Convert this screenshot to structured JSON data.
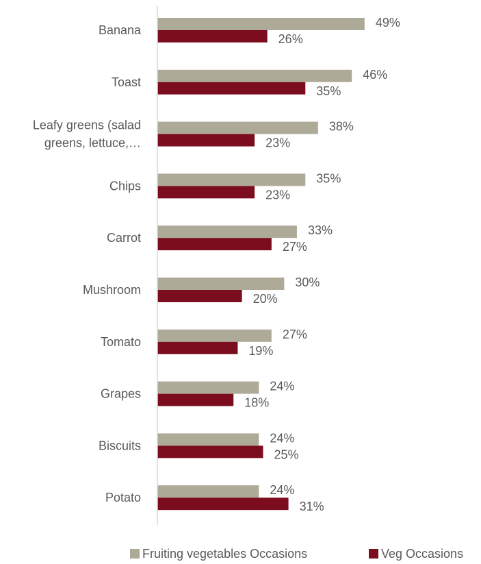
{
  "chart_data": {
    "type": "bar",
    "orientation": "horizontal",
    "categories": [
      "Banana",
      "Toast",
      "Leafy greens (salad greens, lettuce,…",
      "Chips",
      "Carrot",
      "Mushroom",
      "Tomato",
      "Grapes",
      "Biscuits",
      "Potato"
    ],
    "category_lines": [
      [
        "Banana"
      ],
      [
        "Toast"
      ],
      [
        "Leafy greens (salad",
        "greens, lettuce,…"
      ],
      [
        "Chips"
      ],
      [
        "Carrot"
      ],
      [
        "Mushroom"
      ],
      [
        "Tomato"
      ],
      [
        "Grapes"
      ],
      [
        "Biscuits"
      ],
      [
        "Potato"
      ]
    ],
    "series": [
      {
        "name": "Fruiting vegetables Occasions",
        "color": "#aeaa98",
        "values": [
          49,
          46,
          38,
          35,
          33,
          30,
          27,
          24,
          24,
          24
        ],
        "labels": [
          "49%",
          "46%",
          "38%",
          "35%",
          "33%",
          "30%",
          "27%",
          "24%",
          "24%",
          "24%"
        ]
      },
      {
        "name": "Veg Occasions",
        "color": "#7b0d1e",
        "values": [
          26,
          35,
          23,
          23,
          27,
          20,
          19,
          18,
          25,
          31
        ],
        "labels": [
          "26%",
          "35%",
          "23%",
          "23%",
          "27%",
          "20%",
          "19%",
          "18%",
          "25%",
          "31%"
        ]
      }
    ],
    "xlim": [
      0,
      50
    ],
    "value_unit": "%",
    "grid": false,
    "legend_position": "bottom-right",
    "title": "",
    "xlabel": "",
    "ylabel": ""
  }
}
